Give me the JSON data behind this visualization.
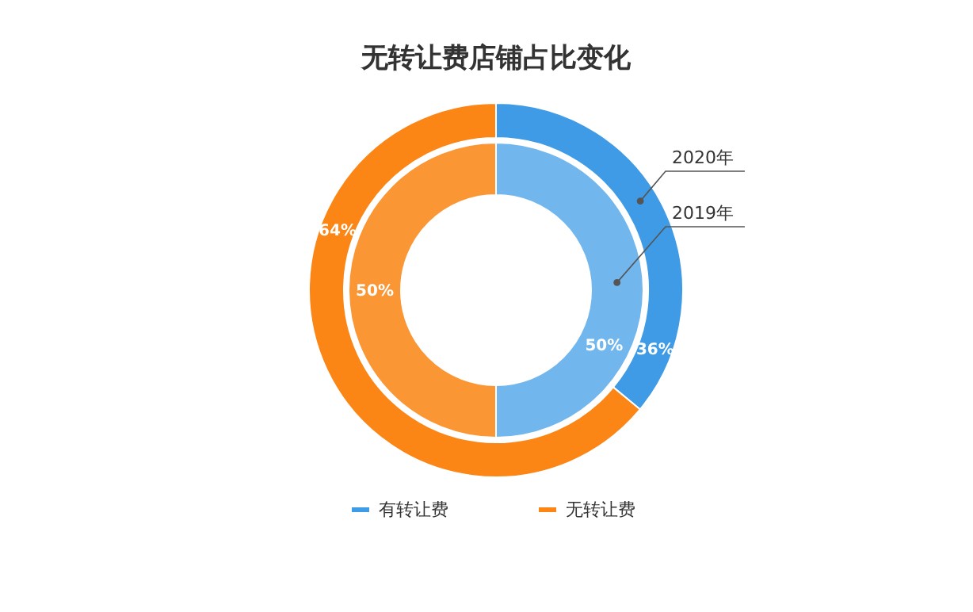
{
  "chart_data": {
    "type": "donut",
    "title": "无转让费店铺占比变化",
    "categories": [
      "有转让费",
      "无转让费"
    ],
    "series": [
      {
        "name": "2020年",
        "values": [
          36,
          64
        ],
        "value_labels": [
          "36%",
          "64%"
        ],
        "colors": [
          "#3f9be6",
          "#fb8616"
        ]
      },
      {
        "name": "2019年",
        "values": [
          50,
          50
        ],
        "value_labels": [
          "50%",
          "50%"
        ],
        "colors": [
          "#72b6ee",
          "#fb9634"
        ]
      }
    ],
    "legend": "bottom"
  }
}
